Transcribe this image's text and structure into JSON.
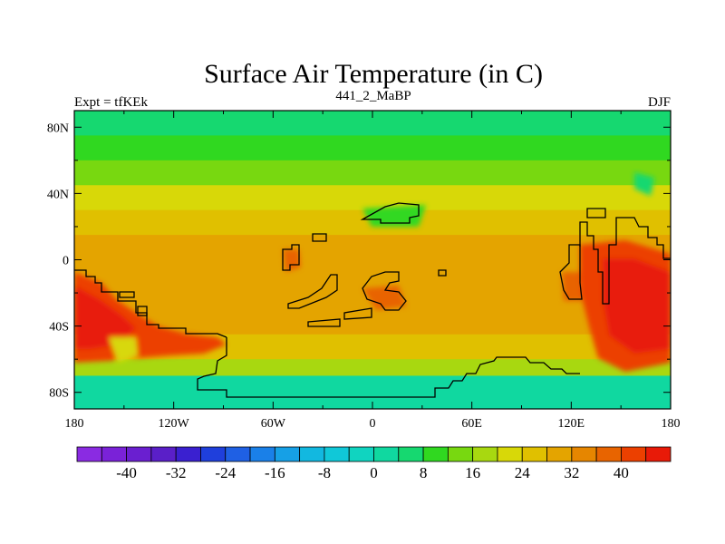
{
  "title": "Surface Air Temperature (in C)",
  "left_label": "Expt = tfKEk",
  "center_label": "441_2_MaBP",
  "right_label": "DJF",
  "chart_data": {
    "type": "heatmap",
    "map": "global surface air temperature, December-January-February mean",
    "units": "C",
    "lon_range": [
      -180,
      180
    ],
    "lat_range": [
      -90,
      90
    ],
    "lat_ticks": [
      "80N",
      "40N",
      "0",
      "40S",
      "80S"
    ],
    "lon_ticks": [
      "180",
      "120W",
      "60W",
      "0",
      "60E",
      "120E",
      "180"
    ],
    "colorbar": {
      "levels": [
        -44,
        -40,
        -36,
        -32,
        -28,
        -24,
        -20,
        -16,
        -12,
        -8,
        -4,
        0,
        4,
        8,
        12,
        16,
        20,
        24,
        28,
        32,
        36,
        40,
        44
      ],
      "labels": [
        "-40",
        "-32",
        "-24",
        "-16",
        "-8",
        "0",
        "8",
        "16",
        "24",
        "32",
        "40"
      ],
      "colors": [
        "#8a2be2",
        "#7a22d8",
        "#6a1fd0",
        "#5a1fc8",
        "#3a20d0",
        "#1f3fdc",
        "#1f60e4",
        "#1a80e8",
        "#16a0e6",
        "#12b8e0",
        "#10c8d8",
        "#10d4c0",
        "#10d8a0",
        "#16d870",
        "#30d820",
        "#78d810",
        "#a8d810",
        "#d8d808",
        "#e0c000",
        "#e4a400",
        "#e68600",
        "#e86400",
        "#ec4000",
        "#e81a08"
      ]
    },
    "zonal_bands": [
      {
        "lat_range": [
          90,
          75
        ],
        "value": 6
      },
      {
        "lat_range": [
          75,
          60
        ],
        "value": 10
      },
      {
        "lat_range": [
          60,
          45
        ],
        "value": 14
      },
      {
        "lat_range": [
          45,
          30
        ],
        "value": 20
      },
      {
        "lat_range": [
          30,
          15
        ],
        "value": 25
      },
      {
        "lat_range": [
          15,
          -45
        ],
        "value": 29
      },
      {
        "lat_range": [
          -45,
          -60
        ],
        "value": 24
      },
      {
        "lat_range": [
          -60,
          -70
        ],
        "value": 16
      },
      {
        "lat_range": [
          -70,
          -90
        ],
        "value": 2
      }
    ],
    "features": [
      {
        "region": "southwest Pacific continent",
        "value": 40
      },
      {
        "region": "eastern continent",
        "value": 40
      },
      {
        "region": "southern continent",
        "value": 16
      }
    ]
  }
}
